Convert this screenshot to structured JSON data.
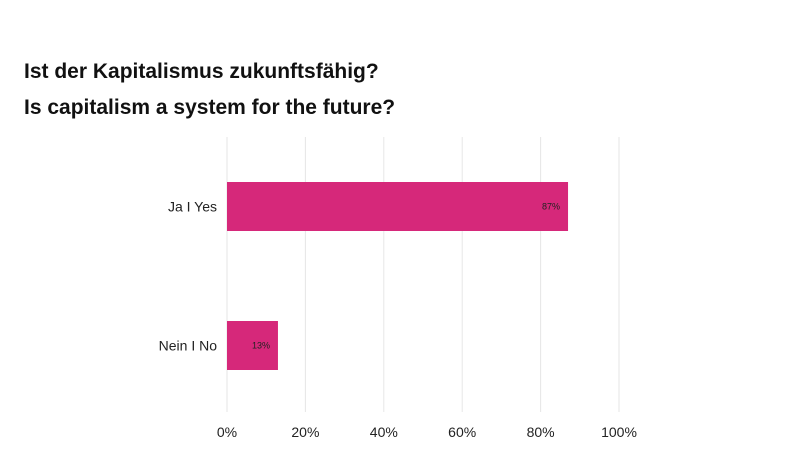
{
  "chart_data": {
    "type": "bar",
    "orientation": "horizontal",
    "title": "Ist der Kapitalismus zukunftsfähig?",
    "subtitle": "Is capitalism a system for the future?",
    "categories": [
      "Ja I Yes",
      "Nein I No"
    ],
    "values": [
      87,
      13
    ],
    "data_labels": [
      "87%",
      "13%"
    ],
    "x_ticks": [
      "0%",
      "20%",
      "40%",
      "60%",
      "80%",
      "100%"
    ],
    "xlim": [
      0,
      100
    ],
    "grid": true,
    "legend": "none",
    "bar_color": "#d6287a",
    "grid_color": "#e6e6e6"
  }
}
